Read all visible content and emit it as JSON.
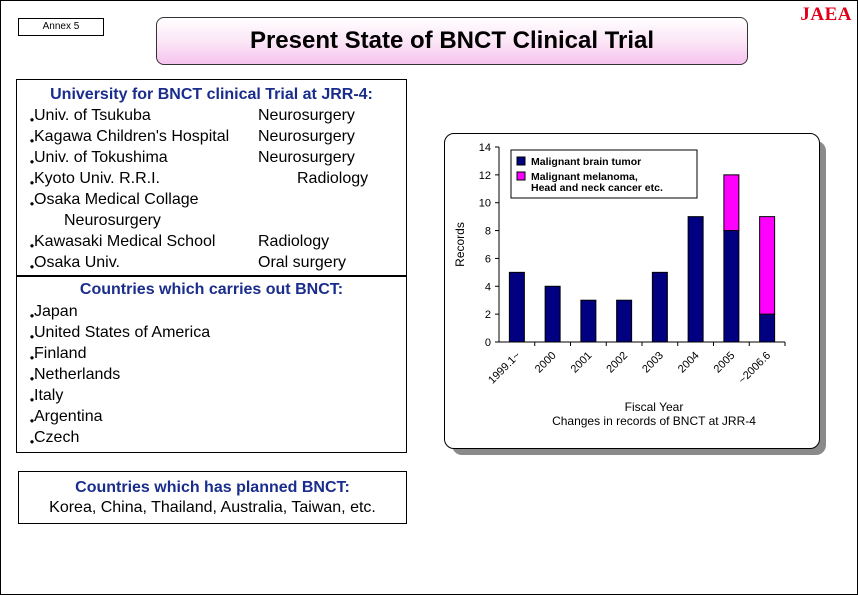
{
  "annex": "Annex 5",
  "logo": "JAEA",
  "title": "Present State of BNCT Clinical Trial",
  "universities": {
    "heading": "University for BNCT clinical Trial at JRR-4:",
    "items": [
      {
        "name": "Univ. of Tsukuba",
        "dept": "Neurosurgery"
      },
      {
        "name": "Kagawa Children's Hospital",
        "dept": "Neurosurgery"
      },
      {
        "name": "Univ. of Tokushima",
        "dept": "Neurosurgery"
      },
      {
        "name": "Kyoto Univ. R.R.I.",
        "dept": "Radiology"
      },
      {
        "name": "Osaka Medical Collage",
        "dept": ""
      },
      {
        "name": "",
        "dept": "Neurosurgery"
      },
      {
        "name": "Kawasaki Medical School",
        "dept": "Radiology"
      },
      {
        "name": "Osaka Univ.",
        "dept": "Oral surgery"
      }
    ]
  },
  "countries_active": {
    "heading": "Countries which carries out BNCT:",
    "items": [
      "Japan",
      "United States of America",
      "Finland",
      "Netherlands",
      "Italy",
      "Argentina",
      "Czech"
    ]
  },
  "countries_planned": {
    "heading": "Countries which has planned BNCT:",
    "text": "Korea, China, Thailand, Australia, Taiwan, etc."
  },
  "chart_data": {
    "type": "bar",
    "stacked": true,
    "categories": [
      "1999.1~",
      "2000",
      "2001",
      "2002",
      "2003",
      "2004",
      "2005",
      "~2006.6"
    ],
    "series": [
      {
        "name": "Malignant brain tumor",
        "color": "#000080",
        "values": [
          5,
          4,
          3,
          3,
          5,
          9,
          8,
          2
        ]
      },
      {
        "name": "Malignant melanoma, Head and neck cancer etc.",
        "color": "#ff00ff",
        "values": [
          0,
          0,
          0,
          0,
          0,
          0,
          4,
          7
        ]
      }
    ],
    "legend_lines": [
      [
        "Malignant brain tumor"
      ],
      [
        "Malignant melanoma,",
        "Head and neck cancer etc."
      ]
    ],
    "ylabel": "Records",
    "xlabel": "Fiscal Year",
    "caption": "Changes in records of BNCT at JRR-4",
    "ylim": [
      0,
      14
    ],
    "yticks": [
      0,
      2,
      4,
      6,
      8,
      10,
      12,
      14
    ],
    "legend_position": "top-left"
  }
}
